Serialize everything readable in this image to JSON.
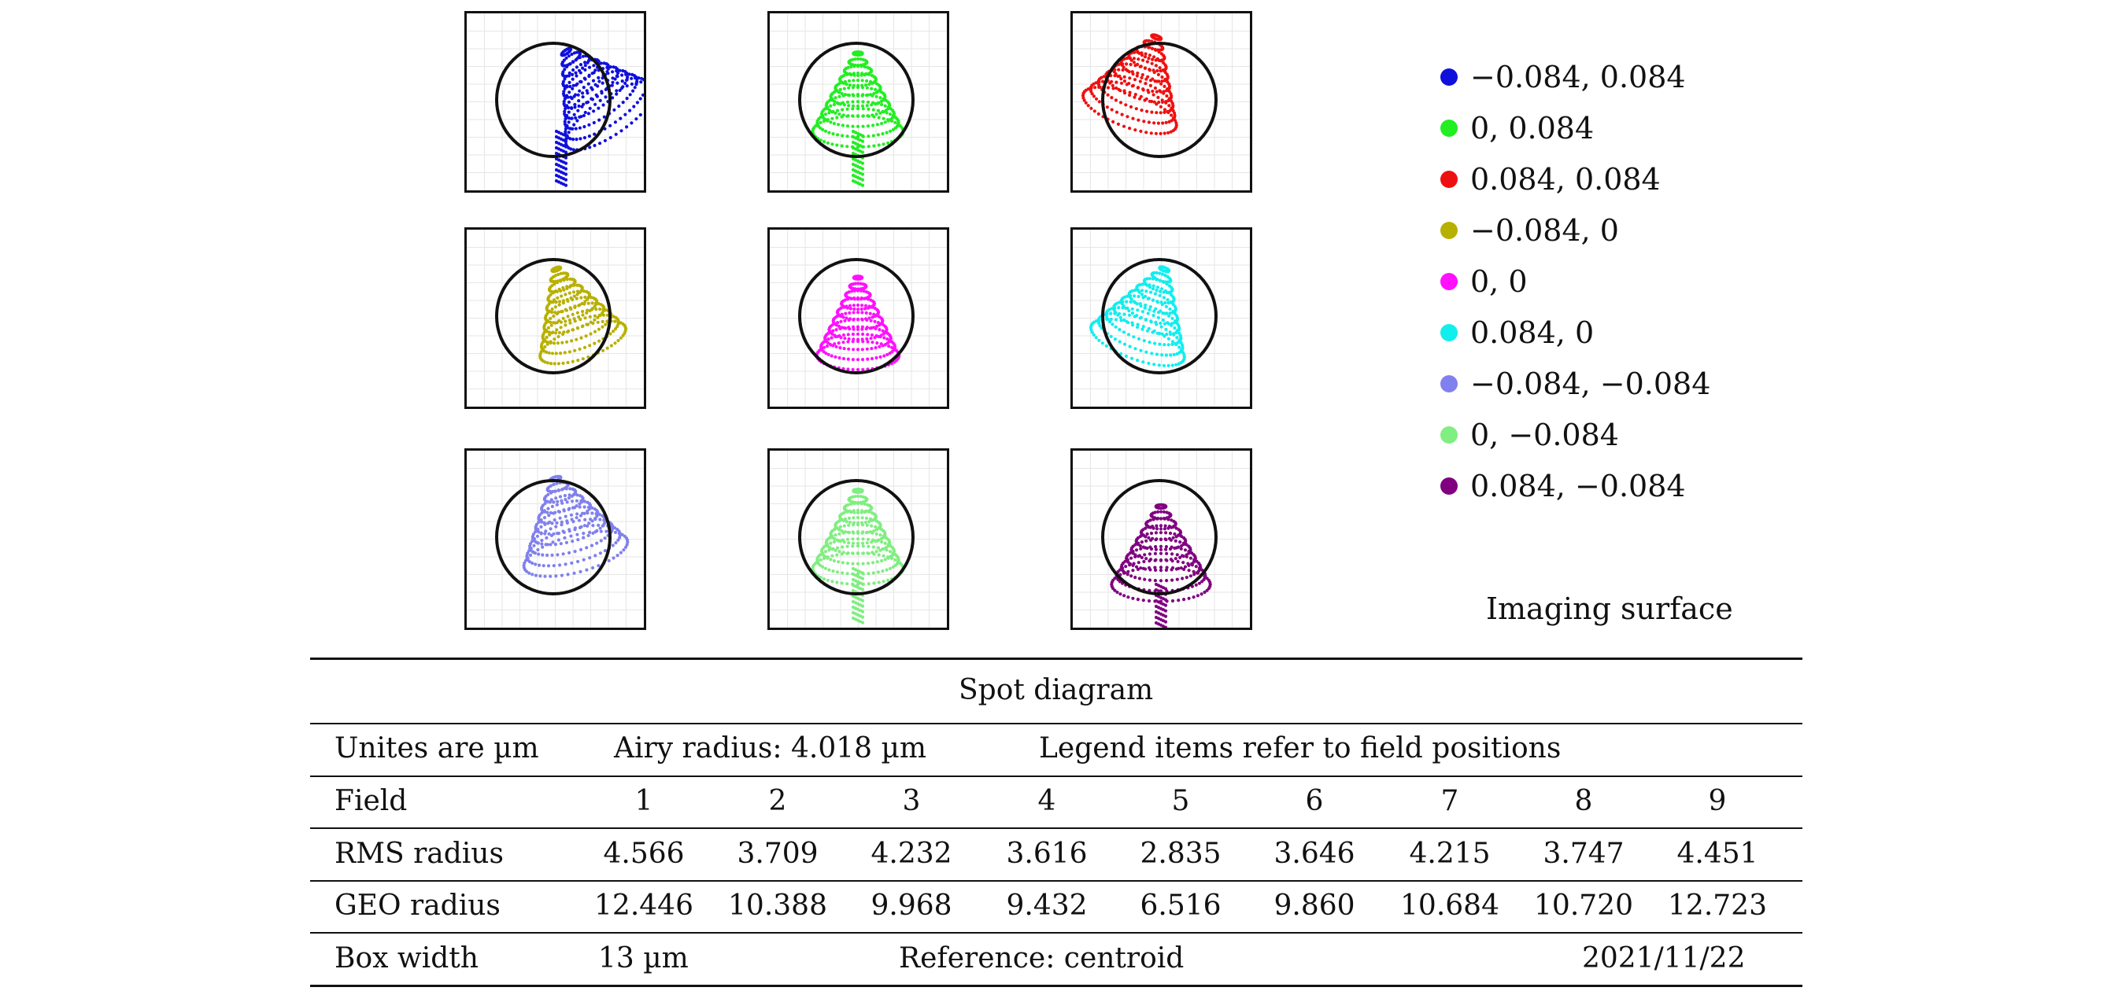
{
  "panels": [
    {
      "field": "-0.084, 0.084",
      "color": "#1010dd",
      "shape": "tl"
    },
    {
      "field": "0, 0.084",
      "color": "#22ee22",
      "shape": "mushroom"
    },
    {
      "field": "0.084, 0.084",
      "color": "#ee1010",
      "shape": "tr"
    },
    {
      "field": "-0.084, 0",
      "color": "#b8b000",
      "shape": "left"
    },
    {
      "field": "0, 0",
      "color": "#ff10ff",
      "shape": "center"
    },
    {
      "field": "0.084, 0",
      "color": "#10eeee",
      "shape": "right"
    },
    {
      "field": "-0.084, -0.084",
      "color": "#8080ee",
      "shape": "bl"
    },
    {
      "field": "0, -0.084",
      "color": "#80ee80",
      "shape": "mushroom"
    },
    {
      "field": "0.084, -0.084",
      "color": "#800080",
      "shape": "br"
    }
  ],
  "legend": [
    {
      "label": "−0.084, 0.084",
      "color": "#1010dd"
    },
    {
      "label": "0, 0.084",
      "color": "#22ee22"
    },
    {
      "label": "0.084, 0.084",
      "color": "#ee1010"
    },
    {
      "label": "−0.084, 0",
      "color": "#b8b000"
    },
    {
      "label": "0, 0",
      "color": "#ff10ff"
    },
    {
      "label": "0.084, 0",
      "color": "#10eeee"
    },
    {
      "label": "−0.084, −0.084",
      "color": "#8080ee"
    },
    {
      "label": "0, −0.084",
      "color": "#80ee80"
    },
    {
      "label": "0.084, −0.084",
      "color": "#800080"
    }
  ],
  "surface_label": "Imaging surface",
  "table": {
    "title": "Spot diagram",
    "units": "Unites are µm",
    "airy": "Airy radius: 4.018 µm",
    "legend_note": "Legend items refer to field positions",
    "field_label": "Field",
    "fields": [
      "1",
      "2",
      "3",
      "4",
      "5",
      "6",
      "7",
      "8",
      "9"
    ],
    "rms_label": "RMS radius",
    "rms": [
      "4.566",
      "3.709",
      "4.232",
      "3.616",
      "2.835",
      "3.646",
      "4.215",
      "3.747",
      "4.451"
    ],
    "geo_label": "GEO radius",
    "geo": [
      "12.446",
      "10.388",
      "9.968",
      "9.432",
      "6.516",
      "9.860",
      "10.684",
      "10.720",
      "12.723"
    ],
    "box_width": "Box width",
    "box_value": "13 µm",
    "reference": "Reference: centroid",
    "date": "2021/11/22"
  }
}
